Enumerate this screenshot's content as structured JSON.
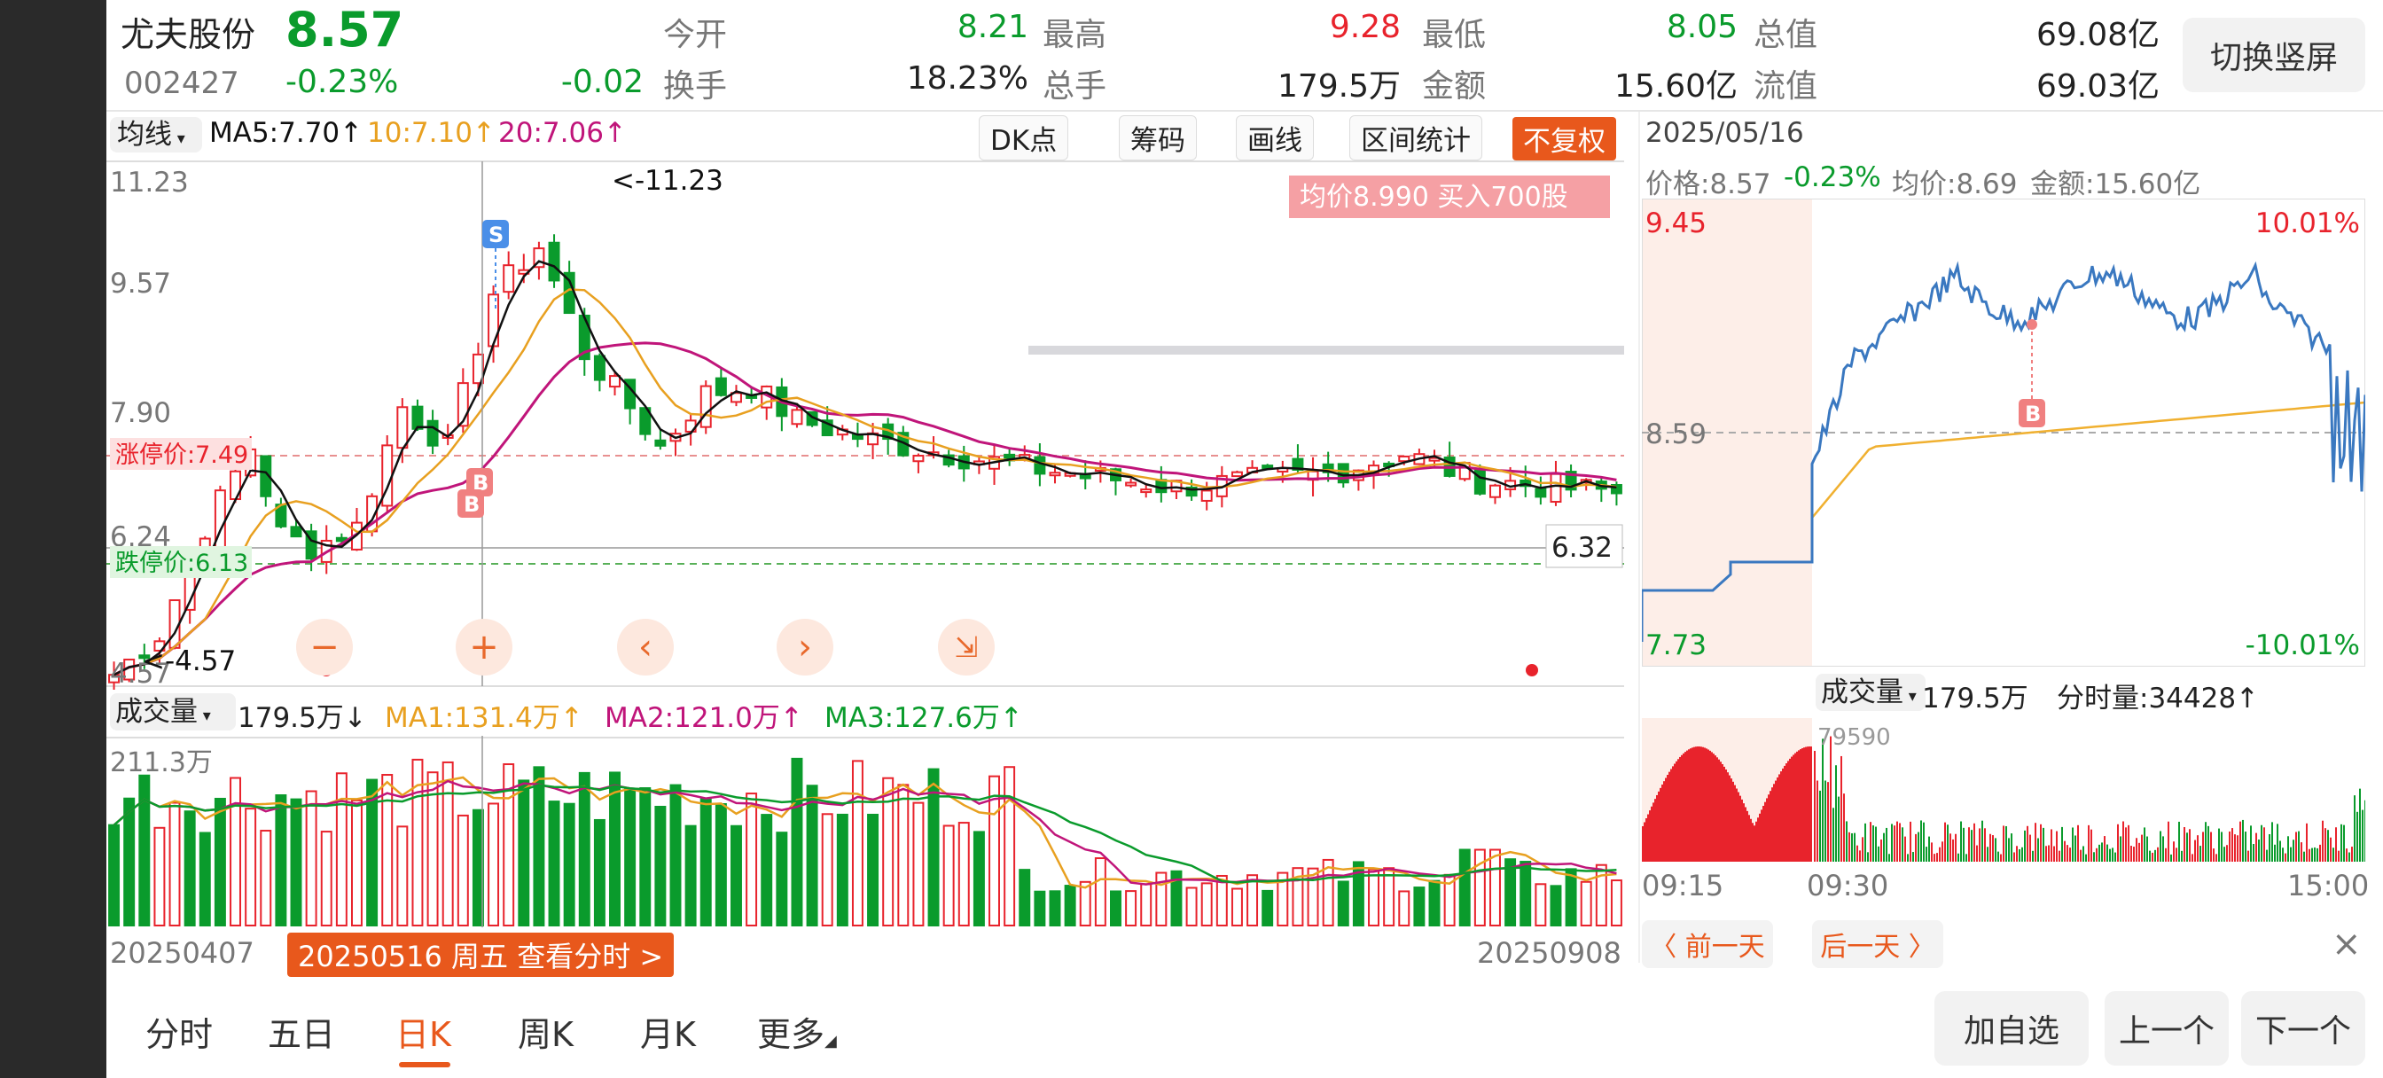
{
  "header": {
    "stock_name": "尤夫股份",
    "price": "8.57",
    "code": "002427",
    "change_pct": "-0.23%",
    "change": "-0.02",
    "open_label": "今开",
    "open": "8.21",
    "high_label": "最高",
    "high": "9.28",
    "low_label": "最低",
    "low": "8.05",
    "total_mv_label": "总值",
    "total_mv": "69.08亿",
    "turnover_label": "换手",
    "turnover": "18.23%",
    "volume_label": "总手",
    "volume": "179.5万",
    "amount_label": "金额",
    "amount": "15.60亿",
    "float_mv_label": "流值",
    "float_mv": "69.03亿",
    "switch_button": "切换竖屏"
  },
  "kline": {
    "ma_selector": "均线",
    "ma5": "MA5:7.70↑",
    "ma10": "10:7.10↑",
    "ma20": "20:7.06↑",
    "tools": [
      "DK点",
      "筹码",
      "画线",
      "区间统计"
    ],
    "fq_button": "不复权",
    "avg_banner": "均价8.990  买入700股",
    "y_labels": [
      "11.23",
      "9.57",
      "7.90",
      "6.24",
      "4.57"
    ],
    "max_marker": "<-11.23",
    "min_marker": "<-4.57",
    "limit_up": "涨停价:7.49",
    "limit_down": "跌停价:6.13",
    "cursor_price": "6.32",
    "marker_s": "S",
    "marker_b": "B",
    "controls": [
      "−",
      "+",
      "‹",
      "›",
      "⇲"
    ],
    "start_date": "20250407",
    "end_date": "20250908",
    "cursor_date": "20250516 周五 查看分时 >"
  },
  "volume": {
    "selector": "成交量",
    "value": "179.5万↓",
    "ma1": "MA1:131.4万↑",
    "ma2": "MA2:121.0万↑",
    "ma3": "MA3:127.6万↑",
    "max_label": "211.3万"
  },
  "intraday": {
    "date": "2025/05/16",
    "price": "价格:8.57",
    "pct": "-0.23%",
    "avg": "均价:8.69",
    "amount": "金额:15.60亿",
    "y_top": "9.45",
    "y_mid": "8.59",
    "y_bottom": "7.73",
    "pct_top": "10.01%",
    "pct_bottom": "-10.01%",
    "marker_b": "B",
    "vol_selector": "成交量",
    "vol_value": "179.5万",
    "minute_vol": "分时量:34428↑",
    "vol_max": "79590",
    "times": [
      "09:15",
      "09:30",
      "15:00"
    ],
    "prev_day": "〈 前一天",
    "next_day": "后一天 〉",
    "close": "×"
  },
  "tabs": [
    "分时",
    "五日",
    "日K",
    "周K",
    "月K",
    "更多"
  ],
  "active_tab": "日K",
  "bottom_buttons": [
    "加自选",
    "上一个",
    "下一个"
  ],
  "colors": {
    "up": "#e8232c",
    "down": "#0a9b2c",
    "ma5": "#111111",
    "ma10": "#e8a020",
    "ma20": "#c0157a",
    "accent": "#e8581c"
  }
}
